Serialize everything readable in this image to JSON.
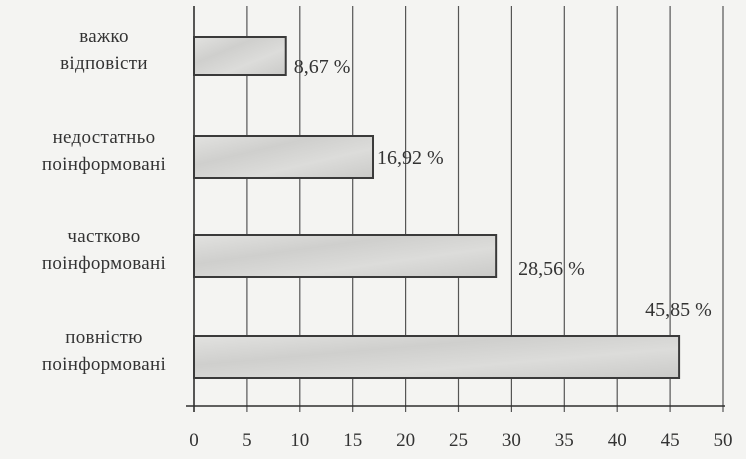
{
  "chart_data": {
    "type": "bar",
    "orientation": "horizontal",
    "title": "",
    "xlabel": "",
    "ylabel": "",
    "xlim": [
      0,
      50
    ],
    "x_ticks": [
      "0",
      "5",
      "10",
      "15",
      "20",
      "25",
      "30",
      "35",
      "40",
      "45",
      "50"
    ],
    "grid": "vertical",
    "categories": [
      {
        "lines": [
          "важко",
          "відповісти"
        ]
      },
      {
        "lines": [
          "недостатньо",
          "поінформовані"
        ]
      },
      {
        "lines": [
          "частково",
          "поінформовані"
        ]
      },
      {
        "lines": [
          "повністю",
          "поінформовані"
        ]
      }
    ],
    "values": [
      8.67,
      16.92,
      28.56,
      45.85
    ],
    "value_labels": [
      "8,67 %",
      "16,92 %",
      "28,56 %",
      "45,85 %"
    ],
    "colors": {
      "bar_fill": "#d6d6d4",
      "bar_stroke": "#3a3a3a",
      "grid": "#555555",
      "text": "#333333"
    }
  }
}
